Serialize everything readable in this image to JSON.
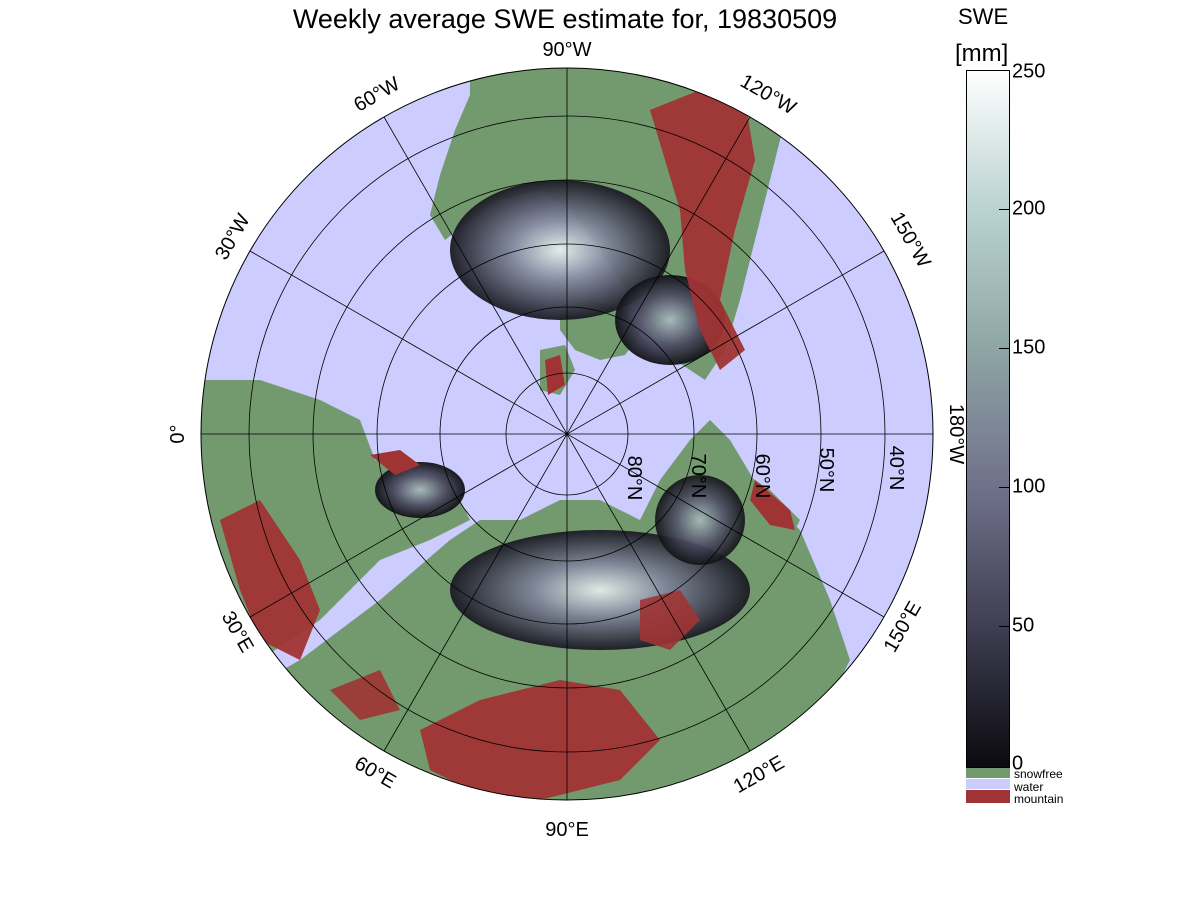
{
  "title": "Weekly average SWE estimate for, 19830509",
  "colorbar": {
    "label": "SWE",
    "unit": "[mm]",
    "ticks": [
      "250",
      "200",
      "150",
      "100",
      "50",
      "0"
    ],
    "gradient_colors": [
      "#ffffff",
      "#b9d3d1",
      "#8ea5a5",
      "#6f708a",
      "#3f3e52",
      "#0a0a0f"
    ]
  },
  "legend": [
    {
      "label": "snowfree",
      "color": "#739a6f"
    },
    {
      "label": "water",
      "color": "#ccccff"
    },
    {
      "label": "mountain",
      "color": "#a03434"
    }
  ],
  "colors": {
    "water": "#ccccff",
    "snowfree": "#739a6f",
    "mountain": "#a03434",
    "snow_low": "#141418",
    "snow_mid": "#6b6b85",
    "snow_high": "#d6e6e3"
  },
  "longitude_labels": {
    "top": "90°W",
    "lon_60w": "60°W",
    "lon_120w": "120°W",
    "lon_30w": "30°W",
    "lon_150w": "150°W",
    "left": "0°",
    "right": "180°W",
    "lon_30e": "30°E",
    "lon_150e": "150°E",
    "lon_60e": "60°E",
    "lon_120e": "120°E",
    "bottom": "90°E"
  },
  "latitude_labels": [
    "80°N",
    "70°N",
    "60°N",
    "50°N",
    "40°N"
  ]
}
